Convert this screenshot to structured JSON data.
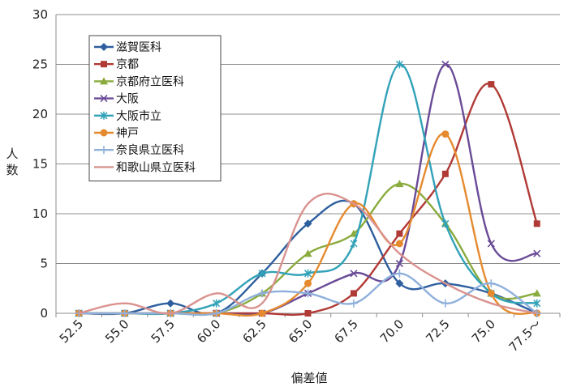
{
  "chart_data": {
    "type": "line",
    "title": "",
    "xlabel": "偏差値",
    "ylabel": "人数",
    "categories": [
      "52.5",
      "55.0",
      "57.5",
      "60.0",
      "62.5",
      "65.0",
      "67.5",
      "70.0",
      "72.5",
      "75.0",
      "77.5〜"
    ],
    "ylim": [
      0,
      30
    ],
    "yticks": [
      0,
      5,
      10,
      15,
      20,
      25,
      30
    ],
    "grid": "horizontal",
    "smooth": true,
    "legend_position": "top-left",
    "series": [
      {
        "name": "滋賀医科",
        "color": "#2e5f9e",
        "marker": "diamond",
        "values": [
          0,
          0,
          1,
          0,
          4,
          9,
          11,
          3,
          3,
          2,
          0
        ]
      },
      {
        "name": "京都",
        "color": "#b03a35",
        "marker": "square",
        "values": [
          0,
          0,
          0,
          0,
          0,
          0,
          2,
          8,
          14,
          23,
          9
        ]
      },
      {
        "name": "京都府立医科",
        "color": "#8aab3e",
        "marker": "triangle",
        "values": [
          0,
          0,
          0,
          0,
          2,
          6,
          8,
          13,
          9,
          2,
          2
        ]
      },
      {
        "name": "大阪",
        "color": "#6a4b97",
        "marker": "x",
        "values": [
          0,
          0,
          0,
          0,
          0,
          2,
          4,
          5,
          25,
          7,
          6
        ]
      },
      {
        "name": "大阪市立",
        "color": "#31a2b8",
        "marker": "asterisk",
        "values": [
          0,
          0,
          0,
          1,
          4,
          4,
          7,
          25,
          9,
          2,
          1
        ]
      },
      {
        "name": "神戸",
        "color": "#e58a2f",
        "marker": "circle",
        "values": [
          0,
          0,
          0,
          0,
          0,
          3,
          11,
          7,
          18,
          2,
          0
        ]
      },
      {
        "name": "奈良県立医科",
        "color": "#8fb0dc",
        "marker": "plus",
        "values": [
          0,
          0,
          0,
          0,
          2,
          2,
          1,
          4,
          1,
          3,
          0
        ]
      },
      {
        "name": "和歌山県立医科",
        "color": "#d9928f",
        "marker": "none",
        "values": [
          0,
          1,
          0,
          2,
          1,
          11,
          11,
          6,
          3,
          1,
          0
        ]
      }
    ]
  }
}
